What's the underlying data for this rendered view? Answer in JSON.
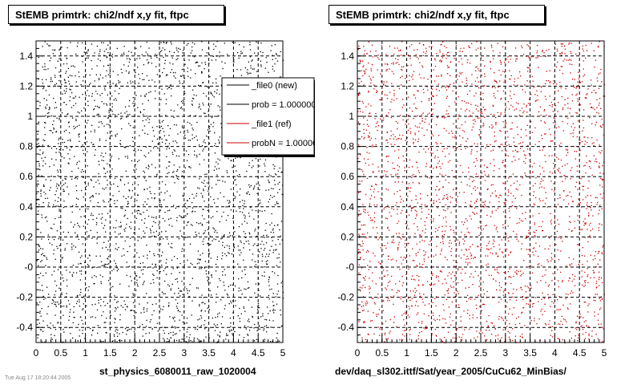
{
  "pads": {
    "left_title": "StEMB primtrk: chi2/ndf x,y fit, ftpc",
    "right_title": "StEMB primtrk: chi2/ndf x,y fit, ftpc",
    "left_file": "st_physics_6080011_raw_1020004",
    "right_file": "dev/daq_sl302.ittf/Sat/year_2005/CuCu62_MinBias/"
  },
  "legend": {
    "entries": [
      {
        "label": "_file0 (new)",
        "color": "#000000"
      },
      {
        "label": "prob = 1.000000",
        "color": "#000000"
      },
      {
        "label": "_file1 (ref)",
        "color": "#cc0000"
      },
      {
        "label": "probN = 1.000000",
        "color": "#cc0000"
      }
    ]
  },
  "stamp": "Tue Aug 17 18:20:44 2005",
  "chart_data": [
    {
      "type": "scatter",
      "title": "StEMB primtrk: chi2/ndf x,y fit, ftpc",
      "xlabel": "st_physics_6080011_raw_1020004",
      "ylabel": "",
      "xlim": [
        0,
        5
      ],
      "ylim": [
        -0.5,
        1.5
      ],
      "xticks": [
        "0",
        "0.5",
        "1",
        "1.5",
        "2",
        "2.5",
        "3",
        "3.5",
        "4",
        "4.5",
        "5"
      ],
      "yticks": [
        "-0.4",
        "-0.2",
        "-0",
        "0.2",
        "0.4",
        "0.6",
        "0.8",
        "1",
        "1.2",
        "1.4"
      ],
      "grid": true,
      "series": [
        {
          "name": "_file0 (new)",
          "color": "#000000",
          "points": "dense random scatter, x 0-5, y -0.5-1.5"
        }
      ]
    },
    {
      "type": "scatter",
      "title": "StEMB primtrk: chi2/ndf x,y fit, ftpc",
      "xlabel": "dev/daq_sl302.ittf/Sat/year_2005/CuCu62_MinBias/",
      "ylabel": "",
      "xlim": [
        0,
        5
      ],
      "ylim": [
        -0.5,
        1.5
      ],
      "xticks": [
        "0",
        "0.5",
        "1",
        "1.5",
        "2",
        "2.5",
        "3",
        "3.5",
        "4",
        "4.5",
        "5"
      ],
      "yticks": [
        "-0.4",
        "-0.2",
        "-0",
        "0.2",
        "0.4",
        "0.6",
        "0.8",
        "1",
        "1.2",
        "1.4"
      ],
      "grid": true,
      "series": [
        {
          "name": "_file1 (ref)",
          "color": "#cc0000",
          "points": "dense random scatter, x 0-5, y -0.5-1.5"
        }
      ]
    }
  ]
}
